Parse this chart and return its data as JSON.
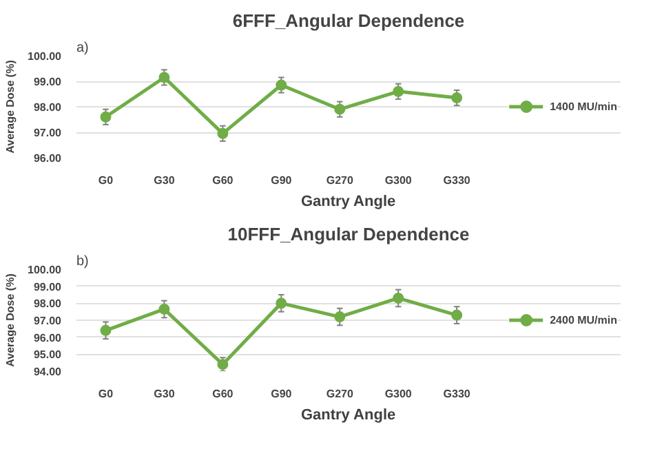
{
  "chart_data": [
    {
      "type": "line",
      "title": "6FFF_Angular Dependence",
      "xlabel": "Gantry Angle",
      "ylabel": "Average Dose (%)",
      "annotations": [
        "a)"
      ],
      "categories": [
        "G0",
        "G30",
        "G60",
        "G90",
        "G270",
        "G300",
        "G330"
      ],
      "series": [
        {
          "name": "1400 MU/min",
          "color": "#70ad47",
          "values": [
            97.6,
            99.15,
            96.95,
            98.85,
            97.9,
            98.6,
            98.35
          ],
          "errors": [
            0.3,
            0.3,
            0.3,
            0.3,
            0.3,
            0.3,
            0.3
          ]
        }
      ],
      "ylim": [
        96,
        100
      ],
      "yticks": [
        {
          "value": 96,
          "label": "96.00"
        },
        {
          "value": 97,
          "label": "97.00"
        },
        {
          "value": 98,
          "label": "98.00"
        },
        {
          "value": 99,
          "label": "99.00"
        },
        {
          "value": 100,
          "label": "100.00"
        }
      ],
      "grid": "y",
      "legend": "right",
      "marker": "circle",
      "line_style": "solid"
    },
    {
      "type": "line",
      "title": "10FFF_Angular Dependence",
      "xlabel": "Gantry Angle",
      "ylabel": "Average Dose (%)",
      "annotations": [
        "b)"
      ],
      "categories": [
        "G0",
        "G30",
        "G60",
        "G90",
        "G270",
        "G300",
        "G330"
      ],
      "series": [
        {
          "name": "2400 MU/min",
          "color": "#70ad47",
          "values": [
            96.4,
            97.65,
            94.4,
            98.0,
            97.2,
            98.3,
            97.3
          ],
          "errors": [
            0.5,
            0.5,
            0.4,
            0.5,
            0.5,
            0.5,
            0.5
          ]
        }
      ],
      "ylim": [
        94,
        100
      ],
      "yticks": [
        {
          "value": 94,
          "label": "94.00"
        },
        {
          "value": 95,
          "label": "95.00"
        },
        {
          "value": 96,
          "label": "96.00"
        },
        {
          "value": 97,
          "label": "97.00"
        },
        {
          "value": 98,
          "label": "98.00"
        },
        {
          "value": 99,
          "label": "99.00"
        },
        {
          "value": 100,
          "label": "100.00"
        }
      ],
      "grid": "y",
      "legend": "right",
      "marker": "circle",
      "line_style": "solid"
    }
  ]
}
